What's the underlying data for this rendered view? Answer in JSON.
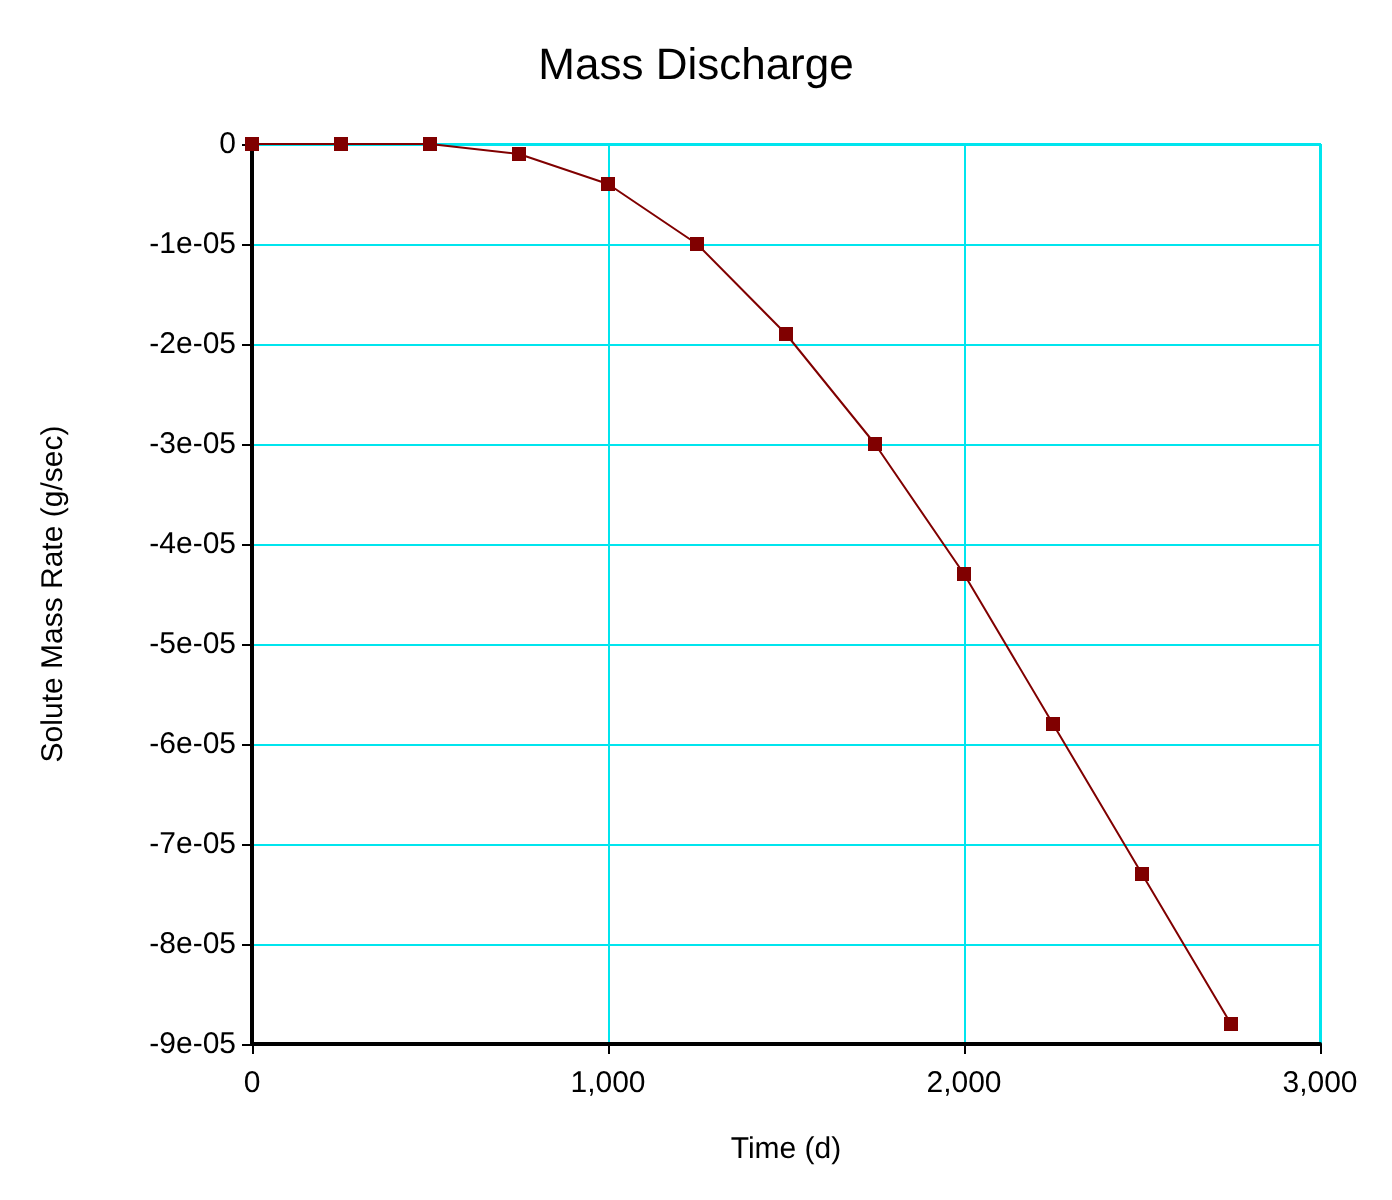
{
  "chart_data": {
    "type": "line",
    "title": "Mass Discharge",
    "xlabel": "Time (d)",
    "ylabel": "Solute Mass Rate (g/sec)",
    "x": [
      0,
      250,
      500,
      750,
      1000,
      1250,
      1500,
      1750,
      2000,
      2250,
      2500,
      2750
    ],
    "series": [
      {
        "color": "#800000",
        "values": [
          0,
          0,
          0,
          -1e-06,
          -4e-06,
          -1e-05,
          -1.9e-05,
          -3e-05,
          -4.3e-05,
          -5.8e-05,
          -7.3e-05,
          -8.8e-05
        ]
      }
    ],
    "xlim": [
      0,
      3000
    ],
    "xticks": [
      0,
      {
        "value": 1000,
        "label": "1,000"
      },
      {
        "value": 2000,
        "label": "2,000"
      },
      {
        "value": 3000,
        "label": "3,000"
      }
    ],
    "ylim": [
      -9e-05,
      0
    ],
    "yticks": [
      {
        "value": -9e-05,
        "label": "-9e-05"
      },
      {
        "value": -8e-05,
        "label": "-8e-05"
      },
      {
        "value": -7e-05,
        "label": "-7e-05"
      },
      {
        "value": -6e-05,
        "label": "-6e-05"
      },
      {
        "value": -5e-05,
        "label": "-5e-05"
      },
      {
        "value": -4e-05,
        "label": "-4e-05"
      },
      {
        "value": -3e-05,
        "label": "-3e-05"
      },
      {
        "value": -2e-05,
        "label": "-2e-05"
      },
      {
        "value": -1e-05,
        "label": "-1e-05"
      },
      0
    ],
    "grid": true,
    "marker": "square",
    "line_style": "solid"
  }
}
